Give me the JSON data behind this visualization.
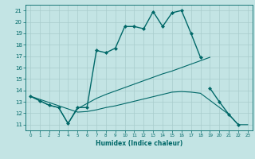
{
  "xlabel": "Humidex (Indice chaleur)",
  "xlim": [
    -0.5,
    23.5
  ],
  "ylim": [
    10.5,
    21.5
  ],
  "xticks": [
    0,
    1,
    2,
    3,
    4,
    5,
    6,
    7,
    8,
    9,
    10,
    11,
    12,
    13,
    14,
    15,
    16,
    17,
    18,
    19,
    20,
    21,
    22,
    23
  ],
  "yticks": [
    11,
    12,
    13,
    14,
    15,
    16,
    17,
    18,
    19,
    20,
    21
  ],
  "bg_color": "#c3e4e4",
  "line_color": "#006868",
  "grid_color": "#a8cccc",
  "line1_x": [
    0,
    1,
    2,
    3,
    4,
    5,
    6,
    7,
    8,
    9,
    10,
    11,
    12,
    13,
    14,
    15,
    16,
    17,
    18
  ],
  "line1_y": [
    13.5,
    13.1,
    12.7,
    12.5,
    11.1,
    12.5,
    12.5,
    17.5,
    17.3,
    17.7,
    19.6,
    19.6,
    19.4,
    20.9,
    19.6,
    20.8,
    21.0,
    19.0,
    16.9
  ],
  "line2_x": [
    19,
    20,
    21,
    22
  ],
  "line2_y": [
    14.2,
    13.0,
    11.9,
    11.0
  ],
  "line3_x": [
    0,
    1,
    2,
    3,
    4,
    5,
    6,
    7,
    8,
    9,
    10,
    11,
    12,
    13,
    14,
    15,
    16,
    17,
    18,
    19
  ],
  "line3_y": [
    13.5,
    13.1,
    12.7,
    12.5,
    11.1,
    12.4,
    12.85,
    13.3,
    13.65,
    13.95,
    14.25,
    14.55,
    14.85,
    15.15,
    15.45,
    15.7,
    16.0,
    16.3,
    16.6,
    16.9
  ],
  "line4_x": [
    0,
    5,
    6,
    7,
    8,
    9,
    10,
    11,
    12,
    13,
    14,
    15,
    16,
    17,
    18,
    21,
    22,
    23
  ],
  "line4_y": [
    13.5,
    12.1,
    12.15,
    12.3,
    12.5,
    12.65,
    12.85,
    13.05,
    13.25,
    13.45,
    13.65,
    13.85,
    13.9,
    13.85,
    13.75,
    11.9,
    11.0,
    11.0
  ]
}
